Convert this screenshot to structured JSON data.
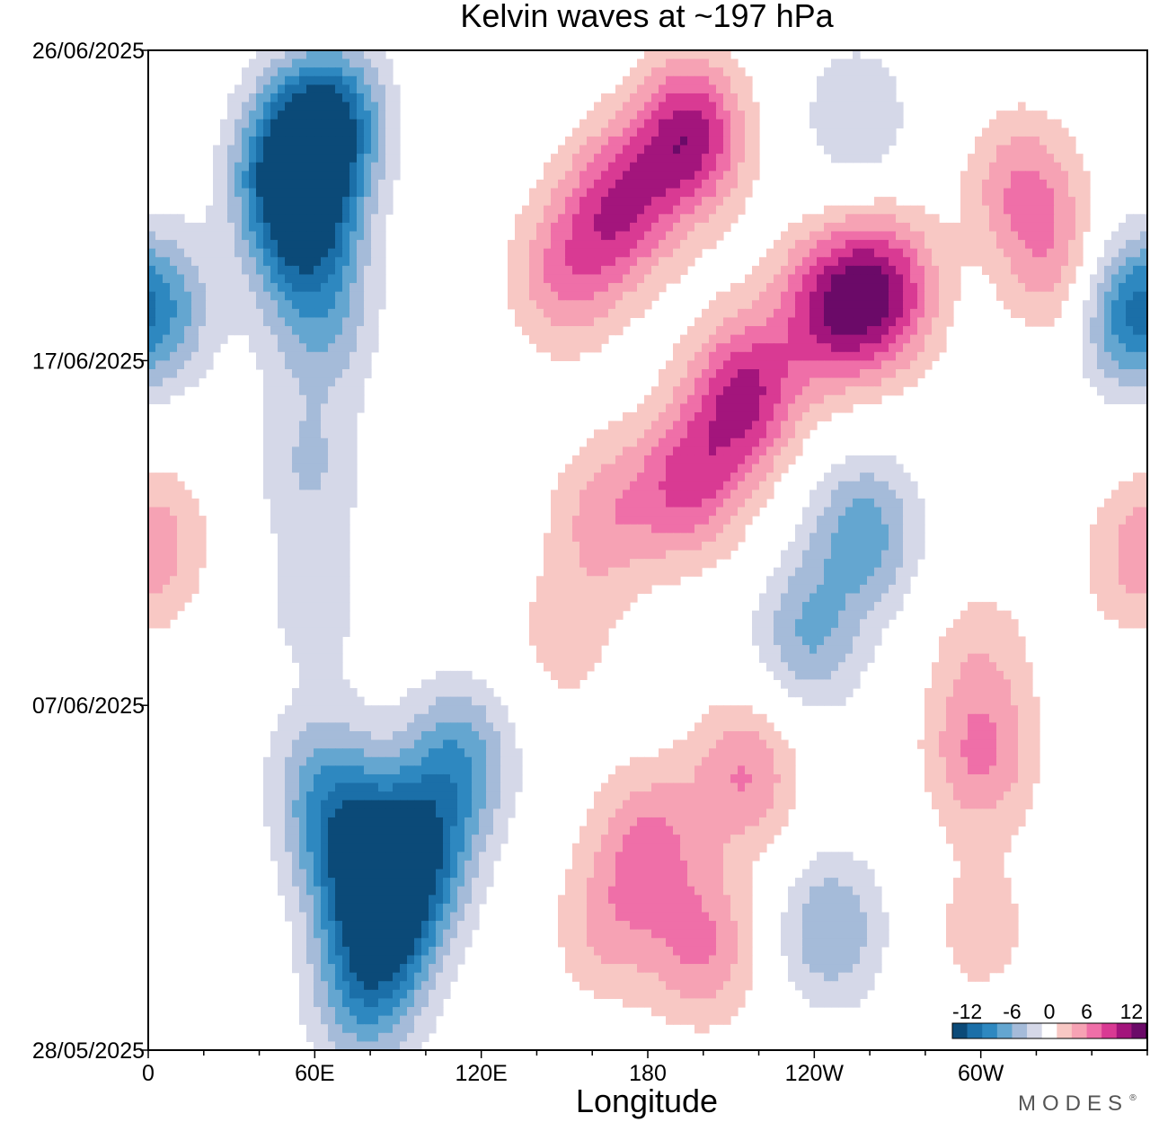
{
  "chart_data": {
    "type": "heatmap",
    "title": "Kelvin waves at ~197 hPa",
    "xlabel": "Longitude",
    "ylabel": "",
    "x_ticks": [
      "0",
      "60E",
      "120E",
      "180",
      "120W",
      "60W"
    ],
    "x_tick_values": [
      0,
      60,
      120,
      180,
      240,
      300
    ],
    "xlim": [
      0,
      360
    ],
    "y_ticks": [
      "26/06/2025",
      "17/06/2025",
      "07/06/2025",
      "28/05/2025"
    ],
    "y_tick_values": [
      29,
      20,
      10,
      0
    ],
    "y_origin_date": "28/05/2025",
    "ylim": [
      0,
      29
    ],
    "colorbar": {
      "tick_labels": [
        "-12",
        "-6",
        "0",
        "6",
        "12"
      ],
      "levels": [
        -14,
        -12,
        -10,
        -8,
        -6,
        -4,
        -2,
        2,
        4,
        6,
        8,
        10,
        12,
        14
      ],
      "colors": [
        "#0b4a78",
        "#1b6fa8",
        "#2e88c0",
        "#64a6d0",
        "#a5bbd9",
        "#d5d8e8",
        "#ffffff",
        "#f8c8c4",
        "#f6a2b4",
        "#ef6fa8",
        "#d93a93",
        "#a3157c",
        "#6b0a68"
      ]
    },
    "series": [
      {
        "lon": 65,
        "t": 27,
        "value": -11
      },
      {
        "lon": 52,
        "t": 25.5,
        "value": -13
      },
      {
        "lon": 57,
        "t": 23.5,
        "value": -8
      },
      {
        "lon": 62,
        "t": 21,
        "value": -5
      },
      {
        "lon": 58,
        "t": 17,
        "value": -4
      },
      {
        "lon": 60,
        "t": 13,
        "value": -3
      },
      {
        "lon": 63,
        "t": 8,
        "value": -5
      },
      {
        "lon": 72,
        "t": 6,
        "value": -8
      },
      {
        "lon": 85,
        "t": 4,
        "value": -13
      },
      {
        "lon": 98,
        "t": 6,
        "value": -9
      },
      {
        "lon": 112,
        "t": 8.5,
        "value": -7
      },
      {
        "lon": 78,
        "t": 1.5,
        "value": -7
      },
      {
        "lon": 8,
        "t": 21.5,
        "value": -4
      },
      {
        "lon": 352,
        "t": 21.5,
        "value": -9
      },
      {
        "lon": 258,
        "t": 15,
        "value": -7
      },
      {
        "lon": 238,
        "t": 12,
        "value": -6
      },
      {
        "lon": 246,
        "t": 3.5,
        "value": -6
      },
      {
        "lon": 255,
        "t": 27,
        "value": -4
      },
      {
        "lon": 195,
        "t": 26.5,
        "value": 11
      },
      {
        "lon": 170,
        "t": 24.5,
        "value": 9
      },
      {
        "lon": 150,
        "t": 22.5,
        "value": 6
      },
      {
        "lon": 215,
        "t": 19,
        "value": 10
      },
      {
        "lon": 245,
        "t": 21.5,
        "value": 9
      },
      {
        "lon": 265,
        "t": 22,
        "value": 10
      },
      {
        "lon": 195,
        "t": 16.5,
        "value": 8
      },
      {
        "lon": 165,
        "t": 15.5,
        "value": 5
      },
      {
        "lon": 150,
        "t": 12,
        "value": 3
      },
      {
        "lon": 315,
        "t": 25,
        "value": 6
      },
      {
        "lon": 330,
        "t": 22.5,
        "value": 5
      },
      {
        "lon": 300,
        "t": 11.5,
        "value": 3
      },
      {
        "lon": 300,
        "t": 8.5,
        "value": 6
      },
      {
        "lon": 215,
        "t": 8,
        "value": 6
      },
      {
        "lon": 180,
        "t": 6,
        "value": 6
      },
      {
        "lon": 165,
        "t": 3.5,
        "value": 4
      },
      {
        "lon": 200,
        "t": 3,
        "value": 6
      },
      {
        "lon": 300,
        "t": 3.5,
        "value": 3
      },
      {
        "lon": 5,
        "t": 15,
        "value": 3
      },
      {
        "lon": 355,
        "t": 14,
        "value": 3
      }
    ]
  },
  "branding": "MODES"
}
